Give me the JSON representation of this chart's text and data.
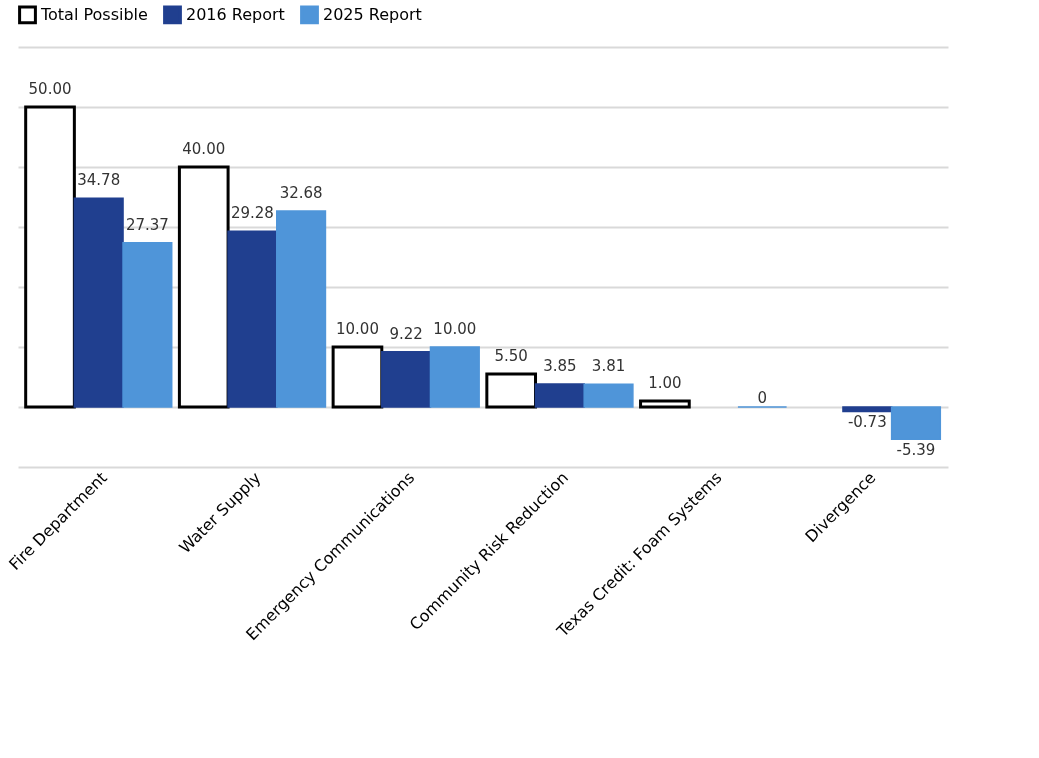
{
  "chart_data": {
    "type": "bar",
    "categories": [
      "Fire Department",
      "Water Supply",
      "Emergency Communications",
      "Community Risk Reduction",
      "Texas Credit: Foam Systems",
      "Divergence"
    ],
    "series": [
      {
        "name": "Total Possible",
        "color": "#ffffff",
        "values": [
          50.0,
          40.0,
          10.0,
          5.5,
          1.0,
          null
        ],
        "value_labels": [
          "50.00",
          "40.00",
          "10.00",
          "5.50",
          "1.00",
          null
        ]
      },
      {
        "name": "2016 Report",
        "color": "#203f8f",
        "values": [
          34.78,
          29.28,
          9.22,
          3.85,
          null,
          -0.73
        ],
        "value_labels": [
          "34.78",
          "29.28",
          "9.22",
          "3.85",
          null,
          "-0.73"
        ]
      },
      {
        "name": "2025 Report",
        "color": "#4f95d9",
        "values": [
          27.37,
          32.68,
          10.0,
          3.81,
          0,
          -5.39
        ],
        "value_labels": [
          "27.37",
          "32.68",
          "10.00",
          "3.81",
          "0",
          "-5.39"
        ]
      }
    ],
    "ylim": [
      -10,
      60
    ],
    "yticks": [
      {
        "value": -10,
        "label": null
      },
      {
        "value": 0,
        "label": null
      },
      {
        "value": 10,
        "label": null
      },
      {
        "value": 20,
        "label": null
      },
      {
        "value": 30,
        "label": null
      },
      {
        "value": 40,
        "label": null
      },
      {
        "value": 50,
        "label": null
      },
      {
        "value": 60,
        "label": null
      }
    ],
    "tick_labels": "x",
    "grid": "y",
    "legend": "top"
  }
}
